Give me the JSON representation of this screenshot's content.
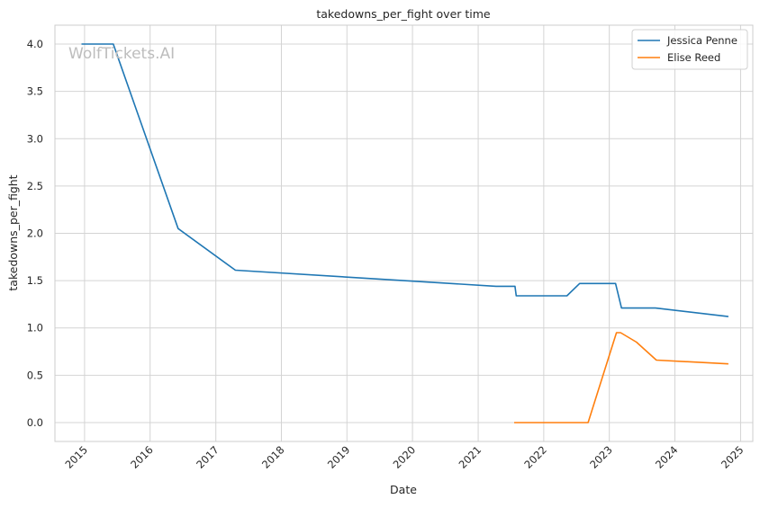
{
  "chart_data": {
    "type": "line",
    "title": "takedowns_per_fight over time",
    "xlabel": "Date",
    "ylabel": "takedowns_per_fight",
    "watermark": "WolfTickets.AI",
    "x_ticks": [
      "2015",
      "2016",
      "2017",
      "2018",
      "2019",
      "2020",
      "2021",
      "2022",
      "2023",
      "2024",
      "2025"
    ],
    "y_ticks": [
      "0.0",
      "0.5",
      "1.0",
      "1.5",
      "2.0",
      "2.5",
      "3.0",
      "3.5",
      "4.0"
    ],
    "xlim": [
      "2014-07-20",
      "2025-03-10"
    ],
    "ylim": [
      -0.2,
      4.2
    ],
    "grid": true,
    "legend_position": "top-right",
    "series": [
      {
        "name": "Jessica Penne",
        "color": "#1f77b4",
        "points": [
          [
            "2014-12-15",
            4.0
          ],
          [
            "2015-06-10",
            4.0
          ],
          [
            "2016-06-05",
            2.05
          ],
          [
            "2017-04-20",
            1.61
          ],
          [
            "2021-04-10",
            1.44
          ],
          [
            "2021-07-25",
            1.44
          ],
          [
            "2021-08-01",
            1.34
          ],
          [
            "2022-05-10",
            1.34
          ],
          [
            "2022-07-20",
            1.47
          ],
          [
            "2023-02-05",
            1.47
          ],
          [
            "2023-03-10",
            1.21
          ],
          [
            "2023-09-15",
            1.21
          ],
          [
            "2024-10-25",
            1.12
          ]
        ]
      },
      {
        "name": "Elise Reed",
        "color": "#ff7f0e",
        "points": [
          [
            "2021-07-20",
            0.0
          ],
          [
            "2022-09-05",
            0.0
          ],
          [
            "2023-02-10",
            0.95
          ],
          [
            "2023-03-05",
            0.95
          ],
          [
            "2023-06-01",
            0.85
          ],
          [
            "2023-09-20",
            0.66
          ],
          [
            "2024-10-25",
            0.62
          ]
        ]
      }
    ]
  }
}
